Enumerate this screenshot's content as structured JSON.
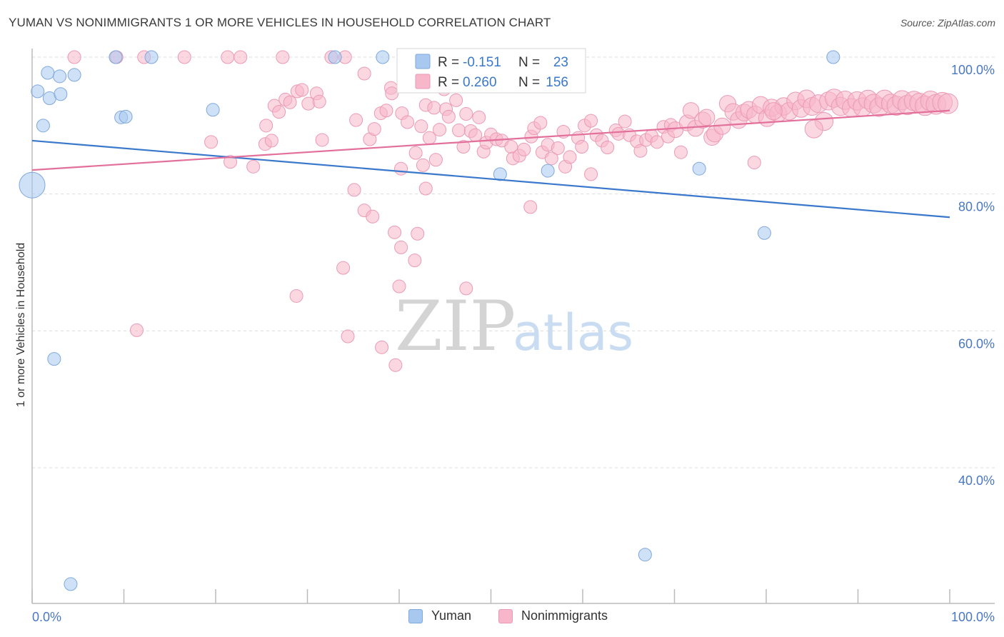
{
  "title": "YUMAN VS NONIMMIGRANTS 1 OR MORE VEHICLES IN HOUSEHOLD CORRELATION CHART",
  "source": "Source: ZipAtlas.com",
  "watermark": {
    "zip": "ZIP",
    "atlas": "atlas"
  },
  "colors": {
    "yuman": "#a8c8f0",
    "yuman_line": "#3a78cc",
    "nonimmigrants": "#f7b6ca",
    "nonimmigrants_line": "#e2709a",
    "tick": "#4a78c2"
  },
  "legend_box": {
    "r_label": "R =",
    "n_label": "N =",
    "rows": [
      {
        "series": "yuman",
        "r": "-0.151",
        "n": "23"
      },
      {
        "series": "nonimmigrants",
        "r": "0.260",
        "n": "156"
      }
    ]
  },
  "chart_data": {
    "type": "scatter",
    "title": "YUMAN VS NONIMMIGRANTS 1 OR MORE VEHICLES IN HOUSEHOLD CORRELATION CHART",
    "xlabel": "",
    "ylabel": "1 or more Vehicles in Household",
    "xlim": [
      0,
      100
    ],
    "ylim": [
      20,
      102
    ],
    "x_tick_labels": [
      "0.0%",
      "100.0%"
    ],
    "y_tick_labels": [
      "100.0%",
      "80.0%",
      "60.0%",
      "40.0%"
    ],
    "y_ticks": [
      100,
      80,
      60,
      40
    ],
    "grid": true,
    "legend_position": "bottom",
    "series": [
      {
        "name": "Yuman",
        "trend": {
          "x": [
            0,
            100
          ],
          "y": [
            87.8,
            76.6
          ]
        },
        "points": [
          [
            0,
            81.3
          ],
          [
            0.6,
            95
          ],
          [
            1.2,
            90
          ],
          [
            1.7,
            97.7
          ],
          [
            1.9,
            94
          ],
          [
            3,
            97.2
          ],
          [
            3.1,
            94.6
          ],
          [
            4.6,
            97.4
          ],
          [
            9.1,
            100
          ],
          [
            9.7,
            91.2
          ],
          [
            10.2,
            91.3
          ],
          [
            13,
            100
          ],
          [
            19.7,
            92.3
          ],
          [
            33,
            100
          ],
          [
            38.2,
            100
          ],
          [
            51,
            82.9
          ],
          [
            56.2,
            83.4
          ],
          [
            72.7,
            83.7
          ],
          [
            79.8,
            74.3
          ],
          [
            87.3,
            100
          ],
          [
            2.4,
            55.9
          ],
          [
            66.8,
            27.3
          ],
          [
            4.2,
            23
          ]
        ]
      },
      {
        "name": "Nonimmigrants",
        "trend": {
          "x": [
            0,
            100
          ],
          "y": [
            83.5,
            92.2
          ]
        },
        "points": [
          [
            4.6,
            100
          ],
          [
            9.2,
            100
          ],
          [
            12.2,
            100
          ],
          [
            16.6,
            100
          ],
          [
            21.3,
            100
          ],
          [
            22.7,
            100
          ],
          [
            27.3,
            100
          ],
          [
            32.6,
            100
          ],
          [
            34.1,
            100
          ],
          [
            19.5,
            87.6
          ],
          [
            21.6,
            84.7
          ],
          [
            24.1,
            84
          ],
          [
            25.5,
            90
          ],
          [
            25.4,
            87.3
          ],
          [
            26.1,
            87.8
          ],
          [
            26.4,
            92.9
          ],
          [
            26.9,
            92
          ],
          [
            27.6,
            93.8
          ],
          [
            28.1,
            93.4
          ],
          [
            28.9,
            95
          ],
          [
            29.4,
            95.2
          ],
          [
            30.1,
            93.2
          ],
          [
            31,
            94.7
          ],
          [
            31.3,
            93.5
          ],
          [
            31.6,
            87.9
          ],
          [
            33.9,
            69.2
          ],
          [
            35.3,
            90.8
          ],
          [
            36.2,
            97.6
          ],
          [
            36.2,
            77.6
          ],
          [
            36.8,
            88
          ],
          [
            37.3,
            89.5
          ],
          [
            38,
            91.8
          ],
          [
            38.6,
            92.2
          ],
          [
            39.1,
            95.5
          ],
          [
            39.2,
            94.7
          ],
          [
            40.2,
            83.7
          ],
          [
            40.3,
            91.8
          ],
          [
            40.9,
            90.5
          ],
          [
            41.8,
            86
          ],
          [
            42.4,
            89.9
          ],
          [
            42.6,
            84.2
          ],
          [
            42.9,
            93
          ],
          [
            43.3,
            88.2
          ],
          [
            43.8,
            92.6
          ],
          [
            44,
            85
          ],
          [
            44.4,
            89.4
          ],
          [
            44.9,
            95.3
          ],
          [
            45.1,
            92.4
          ],
          [
            45.4,
            91.3
          ],
          [
            46.2,
            93.7
          ],
          [
            46.5,
            89.3
          ],
          [
            47,
            86.9
          ],
          [
            47.3,
            91.7
          ],
          [
            47.8,
            89.2
          ],
          [
            48.3,
            88.6
          ],
          [
            48.7,
            91.2
          ],
          [
            49.2,
            86.2
          ],
          [
            49.5,
            87.5
          ],
          [
            50,
            88.7
          ],
          [
            50.6,
            88
          ],
          [
            51.2,
            87.8
          ],
          [
            52.2,
            86.9
          ],
          [
            52.4,
            85.2
          ],
          [
            53.1,
            85.6
          ],
          [
            53.6,
            86.5
          ],
          [
            54.4,
            88.4
          ],
          [
            54.7,
            89.6
          ],
          [
            55.4,
            90.4
          ],
          [
            55.6,
            86.1
          ],
          [
            56.2,
            87.2
          ],
          [
            56.6,
            85.2
          ],
          [
            57.3,
            86.7
          ],
          [
            57.9,
            89.1
          ],
          [
            58.1,
            84
          ],
          [
            58.6,
            85.4
          ],
          [
            59.5,
            88.2
          ],
          [
            59.9,
            86.9
          ],
          [
            60.2,
            90
          ],
          [
            60.9,
            90.7
          ],
          [
            61.5,
            88.6
          ],
          [
            62.1,
            87.8
          ],
          [
            62.7,
            86.8
          ],
          [
            63.6,
            89.3
          ],
          [
            63.9,
            88.8
          ],
          [
            64.6,
            90.6
          ],
          [
            65.1,
            88.6
          ],
          [
            65.9,
            87.7
          ],
          [
            66.3,
            86.3
          ],
          [
            66.9,
            87.9
          ],
          [
            67.5,
            88.5
          ],
          [
            68.1,
            87.6
          ],
          [
            68.8,
            89.8
          ],
          [
            69.3,
            88.4
          ],
          [
            69.6,
            90.1
          ],
          [
            70.1,
            89.4
          ],
          [
            70.7,
            86.1
          ],
          [
            71.4,
            90.4
          ],
          [
            71.8,
            92.2
          ],
          [
            72.3,
            89.6
          ],
          [
            73.1,
            90.8
          ],
          [
            73.5,
            91.2
          ],
          [
            74.1,
            88.3
          ],
          [
            74.4,
            88.8
          ],
          [
            75.2,
            89.9
          ],
          [
            75.8,
            93.2
          ],
          [
            76.4,
            92
          ],
          [
            77,
            90.8
          ],
          [
            77.6,
            91.9
          ],
          [
            78.1,
            92.3
          ],
          [
            78.8,
            91.6
          ],
          [
            79.4,
            93
          ],
          [
            80.1,
            91.1
          ],
          [
            80.6,
            92.6
          ],
          [
            81.3,
            91.8
          ],
          [
            81.9,
            92.8
          ],
          [
            82.5,
            92.1
          ],
          [
            83.2,
            93.6
          ],
          [
            83.8,
            92.5
          ],
          [
            84.4,
            93.9
          ],
          [
            85,
            92.8
          ],
          [
            85.7,
            93.2
          ],
          [
            86.3,
            90.6
          ],
          [
            86.8,
            93.6
          ],
          [
            87.4,
            94
          ],
          [
            88.1,
            92.8
          ],
          [
            88.6,
            93.7
          ],
          [
            89.3,
            92.6
          ],
          [
            89.9,
            93.6
          ],
          [
            90.5,
            92.7
          ],
          [
            91.1,
            93.8
          ],
          [
            91.7,
            93.2
          ],
          [
            92.3,
            92.7
          ],
          [
            92.9,
            93.8
          ],
          [
            93.6,
            93.2
          ],
          [
            94.2,
            92.9
          ],
          [
            94.8,
            93.7
          ],
          [
            95.4,
            93
          ],
          [
            96.1,
            93.6
          ],
          [
            96.7,
            93.3
          ],
          [
            97.3,
            92.9
          ],
          [
            97.9,
            93.6
          ],
          [
            98.5,
            93.1
          ],
          [
            99.2,
            93.4
          ],
          [
            99.8,
            93.2
          ],
          [
            78.7,
            84.6
          ],
          [
            85.2,
            89.5
          ],
          [
            80.8,
            92.1
          ],
          [
            60.9,
            82.9
          ],
          [
            54.3,
            78.1
          ],
          [
            42.9,
            80.8
          ],
          [
            37.1,
            76.7
          ],
          [
            35.1,
            80.6
          ],
          [
            39.5,
            74.4
          ],
          [
            40.2,
            72.2
          ],
          [
            41.7,
            70.3
          ],
          [
            42,
            74.2
          ],
          [
            40,
            66.5
          ],
          [
            47.3,
            66.2
          ],
          [
            28.8,
            65.1
          ],
          [
            11.4,
            60.1
          ],
          [
            34.4,
            59.2
          ],
          [
            38.1,
            57.6
          ],
          [
            39.6,
            55
          ]
        ]
      }
    ]
  },
  "legend_bottom": [
    {
      "label": "Yuman",
      "series": "yuman"
    },
    {
      "label": "Nonimmigrants",
      "series": "nonimmigrants"
    }
  ]
}
